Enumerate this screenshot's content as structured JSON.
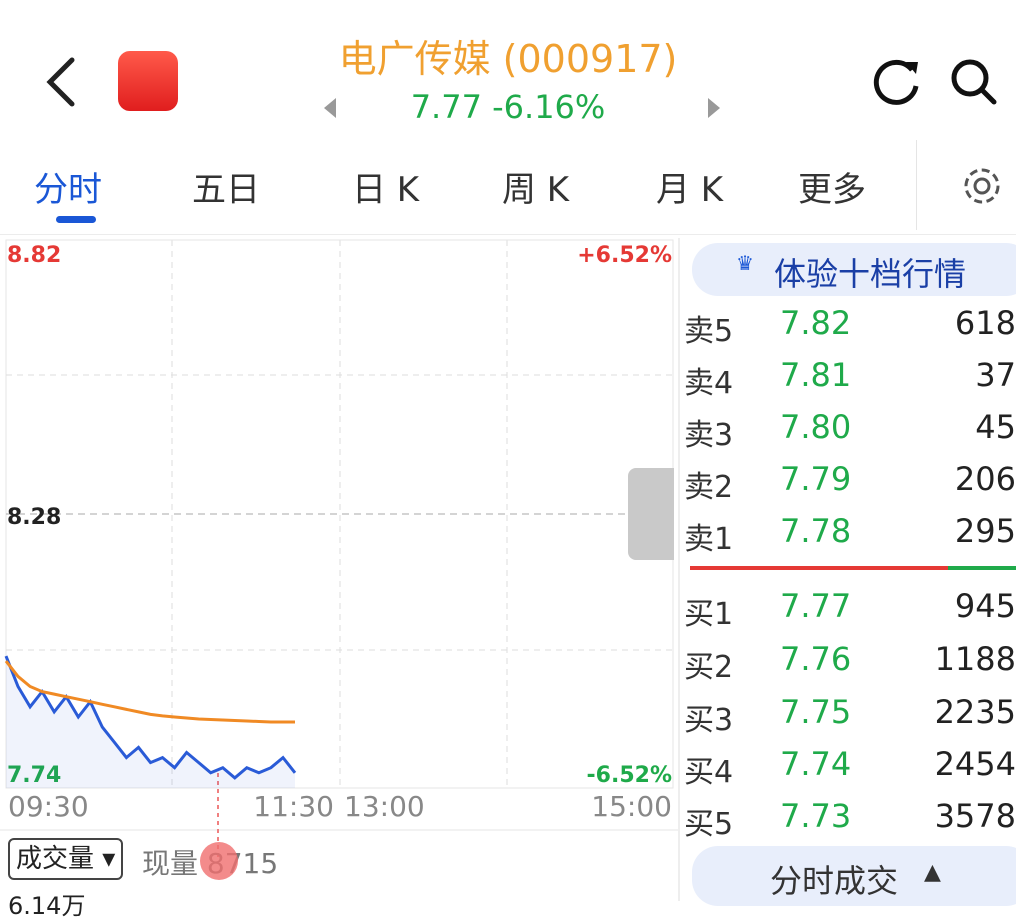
{
  "header": {
    "title": "电广传媒 (000917)",
    "price": "7.77",
    "change": "-6.16%"
  },
  "tabs": [
    "分时",
    "五日",
    "日 K",
    "周 K",
    "月 K",
    "更多"
  ],
  "active_tab": 0,
  "chart": {
    "type": "line",
    "yticks": [
      8.82,
      8.28,
      7.74
    ],
    "ylim": [
      7.74,
      8.82
    ],
    "pct_labels": [
      "+6.52%",
      "-6.52%"
    ],
    "x_labels": [
      "09:30",
      "11:30",
      "13:00",
      "15:00"
    ],
    "series": [
      {
        "name": "price",
        "color": "#2a5bd7",
        "values": [
          8.0,
          7.94,
          7.9,
          7.93,
          7.89,
          7.92,
          7.88,
          7.91,
          7.86,
          7.83,
          7.8,
          7.82,
          7.79,
          7.8,
          7.78,
          7.81,
          7.79,
          7.77,
          7.78,
          7.76,
          7.78,
          7.77,
          7.78,
          7.8,
          7.77
        ]
      },
      {
        "name": "average",
        "color": "#f08a24",
        "values": [
          7.99,
          7.96,
          7.94,
          7.93,
          7.925,
          7.92,
          7.915,
          7.91,
          7.905,
          7.9,
          7.895,
          7.89,
          7.885,
          7.882,
          7.88,
          7.878,
          7.876,
          7.875,
          7.874,
          7.873,
          7.872,
          7.871,
          7.87,
          7.87,
          7.87
        ]
      }
    ]
  },
  "order_book": {
    "button": "体验十档行情",
    "sell": [
      {
        "label": "卖5",
        "price": "7.82",
        "volume": "618"
      },
      {
        "label": "卖4",
        "price": "7.81",
        "volume": "37"
      },
      {
        "label": "卖3",
        "price": "7.80",
        "volume": "45"
      },
      {
        "label": "卖2",
        "price": "7.79",
        "volume": "206"
      },
      {
        "label": "卖1",
        "price": "7.78",
        "volume": "295"
      }
    ],
    "buy": [
      {
        "label": "买1",
        "price": "7.77",
        "volume": "945"
      },
      {
        "label": "买2",
        "price": "7.76",
        "volume": "1188"
      },
      {
        "label": "买3",
        "price": "7.75",
        "volume": "2235"
      },
      {
        "label": "买4",
        "price": "7.74",
        "volume": "2454"
      },
      {
        "label": "买5",
        "price": "7.73",
        "volume": "3578"
      }
    ]
  },
  "volume_panel": {
    "selector": "成交量",
    "current_label": "现量",
    "current_value": "8715",
    "max": "6.14万"
  },
  "trades_button": "分时成交"
}
